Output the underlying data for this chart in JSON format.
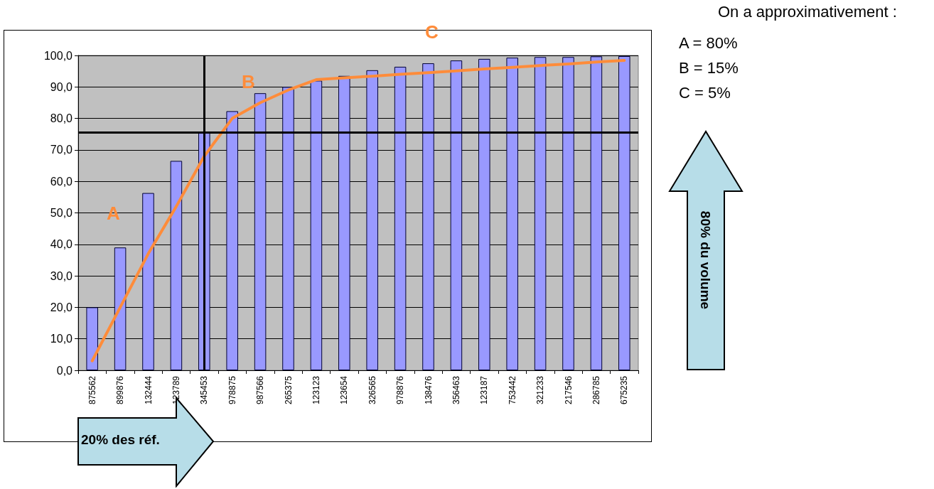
{
  "chart_data": {
    "type": "bar",
    "categories": [
      "875562",
      "899876",
      "132444",
      "123789",
      "345453",
      "978875",
      "987566",
      "265375",
      "123123",
      "123654",
      "326565",
      "978876",
      "138476",
      "356463",
      "123187",
      "753442",
      "321233",
      "217546",
      "286785",
      "675235"
    ],
    "series": [
      {
        "color": "#9999ff",
        "values": [
          20,
          39,
          56.3,
          66.5,
          75.5,
          82.3,
          88,
          90,
          92,
          93.5,
          95.3,
          96.4,
          97.5,
          98.4,
          98.9,
          99.3,
          99.5,
          99.5,
          99.7,
          99.8
        ]
      },
      {
        "type": "line",
        "color": "#ff8c3a",
        "values": [
          3,
          20,
          37,
          52,
          68,
          80,
          85,
          89,
          92.3,
          92.9,
          93.4,
          94,
          94.5,
          95.1,
          95.7,
          96.2,
          96.8,
          97.3,
          97.9,
          98.4
        ]
      }
    ],
    "ylim": [
      0,
      100
    ],
    "yticks": [
      {
        "value": 0,
        "label": "0,0"
      },
      {
        "value": 10,
        "label": "10,0"
      },
      {
        "value": 20,
        "label": "20,0"
      },
      {
        "value": 30,
        "label": "30,0"
      },
      {
        "value": 40,
        "label": "40,0"
      },
      {
        "value": 50,
        "label": "50,0"
      },
      {
        "value": 60,
        "label": "60,0"
      },
      {
        "value": 70,
        "label": "70,0"
      },
      {
        "value": 80,
        "label": "80,0"
      },
      {
        "value": 90,
        "label": "90,0"
      },
      {
        "value": 100,
        "label": "100,0"
      }
    ],
    "grid": "y",
    "marker": "none",
    "line_style": "solid",
    "ref_lines": [
      {
        "axis": "y",
        "value": 75.5,
        "color": "#000000"
      },
      {
        "axis": "x",
        "value": "345453",
        "color": "#000000"
      }
    ],
    "annotations": [
      "On a approximativement :",
      "A = 80%",
      "B = 15%",
      "C = 5%",
      "A",
      "B",
      "C",
      "20% des réf.",
      "80% du volume"
    ]
  }
}
